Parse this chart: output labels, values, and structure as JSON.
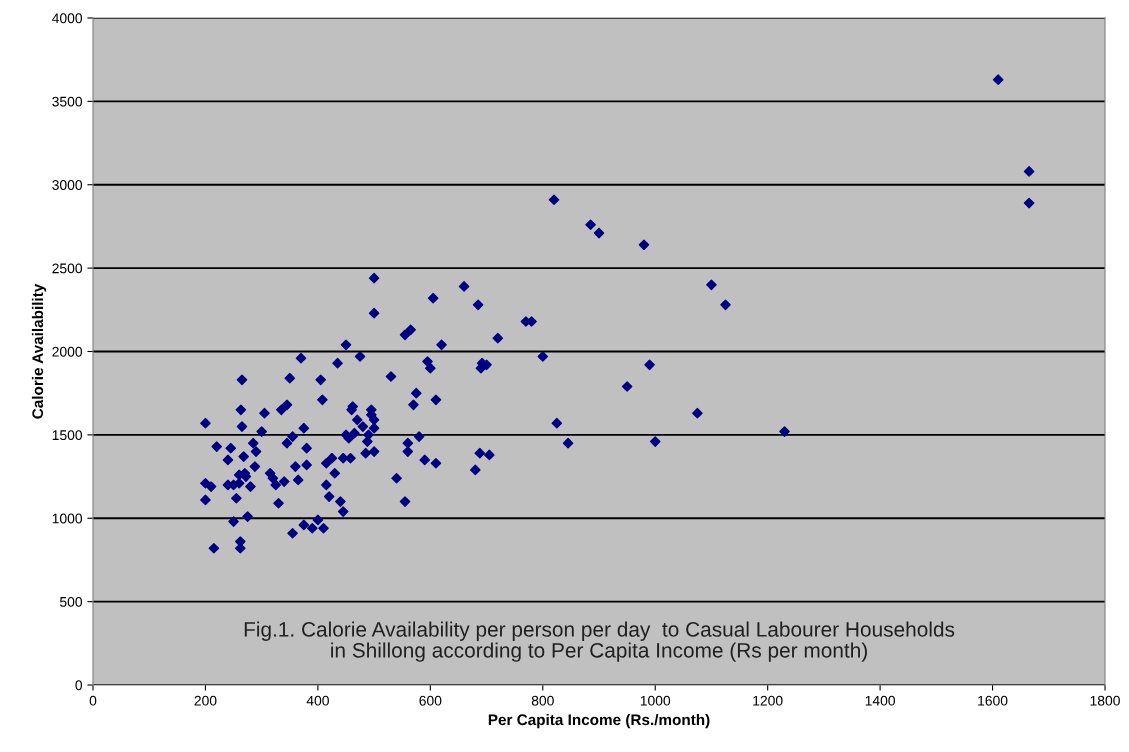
{
  "chart_data": {
    "type": "scatter",
    "xlabel": "Per Capita Income (Rs./month)",
    "ylabel": "Calorie Availability",
    "annotations": [
      "Fig.1. Calorie Availability per person per day  to Casual Labourer Households\nin Shillong according to Per Capita Income (Rs per month)"
    ],
    "xlim": [
      0,
      1800
    ],
    "xticks": [
      0,
      200,
      400,
      600,
      800,
      1000,
      1200,
      1400,
      1600,
      1800
    ],
    "ylim": [
      0,
      4000
    ],
    "yticks": [
      0,
      500,
      1000,
      1500,
      2000,
      2500,
      3000,
      3500,
      4000
    ],
    "grid": "y",
    "marker": "diamond",
    "series": [
      {
        "color": "#000080",
        "x": [
          200,
          200,
          200,
          210,
          215,
          220,
          240,
          240,
          245,
          250,
          250,
          255,
          260,
          260,
          262,
          262,
          263,
          265,
          265,
          268,
          270,
          272,
          275,
          280,
          285,
          288,
          290,
          300,
          305,
          315,
          320,
          325,
          330,
          335,
          340,
          345,
          345,
          350,
          355,
          355,
          360,
          365,
          370,
          375,
          375,
          380,
          380,
          390,
          400,
          405,
          408,
          410,
          415,
          415,
          420,
          425,
          430,
          435,
          440,
          445,
          445,
          450,
          450,
          455,
          458,
          460,
          462,
          465,
          470,
          475,
          480,
          485,
          488,
          490,
          495,
          495,
          500,
          500,
          500,
          500,
          500,
          530,
          540,
          555,
          555,
          560,
          560,
          565,
          570,
          575,
          580,
          590,
          595,
          600,
          605,
          610,
          610,
          620,
          660,
          680,
          685,
          688,
          690,
          692,
          700,
          705,
          720,
          770,
          780,
          800,
          820,
          825,
          845,
          885,
          900,
          950,
          980,
          990,
          1000,
          1075,
          1100,
          1125,
          1230,
          1610,
          1665,
          1665
        ],
        "values": [
          1570,
          1210,
          1110,
          1190,
          820,
          1430,
          1350,
          1200,
          1420,
          1200,
          980,
          1120,
          1260,
          1210,
          860,
          820,
          1650,
          1550,
          1830,
          1370,
          1270,
          1250,
          1010,
          1190,
          1450,
          1310,
          1400,
          1520,
          1630,
          1270,
          1240,
          1200,
          1090,
          1650,
          1220,
          1680,
          1450,
          1840,
          910,
          1490,
          1310,
          1230,
          1960,
          1540,
          960,
          1420,
          1320,
          940,
          990,
          1830,
          1710,
          940,
          1330,
          1200,
          1130,
          1360,
          1270,
          1930,
          1100,
          1360,
          1040,
          2040,
          1500,
          1480,
          1360,
          1650,
          1670,
          1510,
          1590,
          1970,
          1550,
          1390,
          1460,
          1500,
          1650,
          1620,
          2440,
          2230,
          1590,
          1540,
          1400,
          1850,
          1240,
          2100,
          1100,
          1400,
          1450,
          2130,
          1680,
          1750,
          1490,
          1350,
          1940,
          1900,
          2320,
          1330,
          1710,
          2040,
          2390,
          1290,
          2280,
          1390,
          1900,
          1930,
          1920,
          1380,
          2080,
          2180,
          2180,
          1970,
          2910,
          1570,
          1450,
          2760,
          2710,
          1790,
          2640,
          1920,
          1460,
          1630,
          2400,
          2280,
          1520,
          3630,
          3080,
          2890
        ]
      }
    ]
  }
}
